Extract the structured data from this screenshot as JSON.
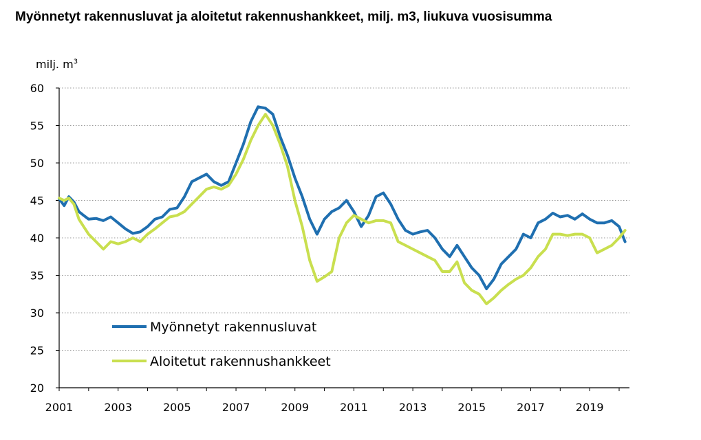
{
  "title": "Myönnetyt rakennusluvat ja aloitetut rakennushankkeet, milj. m3, liukuva vuosisumma",
  "unit_label": "milj. m",
  "unit_superscript": "3",
  "chart_data": {
    "type": "line",
    "title": "Myönnetyt rakennusluvat ja aloitetut rakennushankkeet, milj. m3, liukuva vuosisumma",
    "ylabel": "milj. m3",
    "xlabel": "",
    "xlim": [
      2001,
      2020.35
    ],
    "ylim": [
      20,
      60
    ],
    "yticks": [
      20,
      25,
      30,
      35,
      40,
      45,
      50,
      55,
      60
    ],
    "xticks": [
      "2001",
      "2003",
      "2005",
      "2007",
      "2009",
      "2011",
      "2013",
      "2015",
      "2017",
      "2019"
    ],
    "grid": "horizontal dotted",
    "legend_position": "lower-left",
    "series": [
      {
        "name": "Myönnetyt rakennusluvat",
        "color": "#1f6fb0",
        "x": [
          2001.0,
          2001.17,
          2001.33,
          2001.5,
          2001.67,
          2001.83,
          2002.0,
          2002.25,
          2002.5,
          2002.75,
          2003.0,
          2003.25,
          2003.5,
          2003.75,
          2004.0,
          2004.25,
          2004.5,
          2004.75,
          2005.0,
          2005.25,
          2005.5,
          2005.75,
          2006.0,
          2006.25,
          2006.5,
          2006.75,
          2007.0,
          2007.25,
          2007.5,
          2007.75,
          2008.0,
          2008.25,
          2008.5,
          2008.75,
          2009.0,
          2009.25,
          2009.5,
          2009.75,
          2010.0,
          2010.25,
          2010.5,
          2010.75,
          2011.0,
          2011.25,
          2011.5,
          2011.75,
          2012.0,
          2012.25,
          2012.5,
          2012.75,
          2013.0,
          2013.25,
          2013.5,
          2013.75,
          2014.0,
          2014.25,
          2014.5,
          2014.75,
          2015.0,
          2015.25,
          2015.5,
          2015.75,
          2016.0,
          2016.25,
          2016.5,
          2016.75,
          2017.0,
          2017.25,
          2017.5,
          2017.75,
          2018.0,
          2018.25,
          2018.5,
          2018.75,
          2019.0,
          2019.25,
          2019.5,
          2019.75,
          2020.0,
          2020.2
        ],
        "values": [
          45.2,
          44.3,
          45.5,
          44.8,
          43.5,
          43.0,
          42.5,
          42.6,
          42.3,
          42.8,
          42.0,
          41.2,
          40.6,
          40.8,
          41.5,
          42.5,
          42.8,
          43.8,
          44.0,
          45.5,
          47.5,
          48.0,
          48.5,
          47.5,
          47.0,
          47.5,
          50.0,
          52.5,
          55.5,
          57.5,
          57.3,
          56.5,
          53.5,
          51.0,
          48.0,
          45.5,
          42.5,
          40.5,
          42.5,
          43.5,
          44.0,
          45.0,
          43.5,
          41.5,
          43.0,
          45.5,
          46.0,
          44.5,
          42.5,
          41.0,
          40.5,
          40.8,
          41.0,
          40.0,
          38.5,
          37.5,
          39.0,
          37.5,
          36.0,
          35.0,
          33.2,
          34.5,
          36.5,
          37.5,
          38.5,
          40.5,
          40.0,
          42.0,
          42.5,
          43.3,
          42.8,
          43.0,
          42.5,
          43.2,
          42.5,
          42.0,
          42.0,
          42.3,
          41.5,
          39.5
        ]
      },
      {
        "name": "Aloitetut rakennushankkeet",
        "color": "#c9df4f",
        "x": [
          2001.0,
          2001.17,
          2001.33,
          2001.5,
          2001.67,
          2001.83,
          2002.0,
          2002.25,
          2002.5,
          2002.75,
          2003.0,
          2003.25,
          2003.5,
          2003.75,
          2004.0,
          2004.25,
          2004.5,
          2004.75,
          2005.0,
          2005.25,
          2005.5,
          2005.75,
          2006.0,
          2006.25,
          2006.5,
          2006.75,
          2007.0,
          2007.25,
          2007.5,
          2007.75,
          2008.0,
          2008.25,
          2008.5,
          2008.75,
          2009.0,
          2009.25,
          2009.5,
          2009.75,
          2010.0,
          2010.25,
          2010.5,
          2010.75,
          2011.0,
          2011.25,
          2011.5,
          2011.75,
          2012.0,
          2012.25,
          2012.5,
          2012.75,
          2013.0,
          2013.25,
          2013.5,
          2013.75,
          2014.0,
          2014.25,
          2014.5,
          2014.75,
          2015.0,
          2015.25,
          2015.5,
          2015.75,
          2016.0,
          2016.25,
          2016.5,
          2016.75,
          2017.0,
          2017.25,
          2017.5,
          2017.75,
          2018.0,
          2018.25,
          2018.5,
          2018.75,
          2019.0,
          2019.25,
          2019.5,
          2019.75,
          2020.0,
          2020.2
        ],
        "values": [
          45.3,
          45.0,
          45.3,
          44.5,
          42.5,
          41.5,
          40.5,
          39.5,
          38.5,
          39.5,
          39.2,
          39.5,
          40.0,
          39.5,
          40.5,
          41.2,
          42.0,
          42.8,
          43.0,
          43.5,
          44.5,
          45.5,
          46.5,
          46.8,
          46.5,
          47.0,
          48.5,
          50.5,
          53.0,
          55.0,
          56.5,
          55.0,
          52.5,
          49.5,
          45.0,
          41.5,
          37.0,
          34.2,
          34.8,
          35.5,
          40.0,
          42.0,
          43.0,
          42.5,
          42.0,
          42.3,
          42.3,
          42.0,
          39.5,
          39.0,
          38.5,
          38.0,
          37.5,
          37.0,
          35.5,
          35.5,
          36.8,
          34.0,
          33.0,
          32.5,
          31.2,
          32.0,
          33.0,
          33.8,
          34.5,
          35.0,
          36.0,
          37.5,
          38.5,
          40.5,
          40.5,
          40.3,
          40.5,
          40.5,
          40.0,
          38.0,
          38.5,
          39.0,
          40.0,
          41.0
        ]
      }
    ]
  }
}
